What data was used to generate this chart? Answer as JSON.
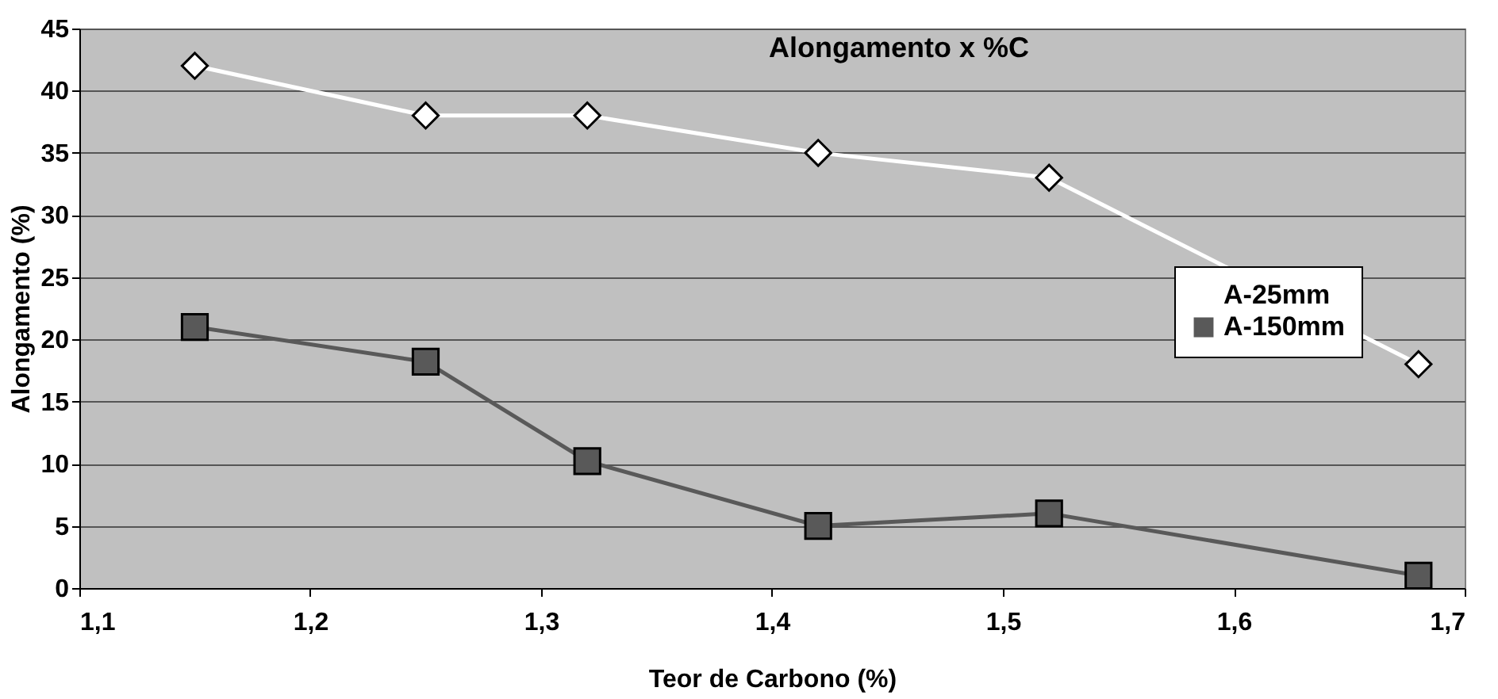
{
  "chart_data": {
    "type": "line",
    "title": "Alongamento x %C",
    "xlabel": "Teor de Carbono (%)",
    "ylabel": "Alongamento (%)",
    "x": [
      1.15,
      1.25,
      1.32,
      1.42,
      1.52,
      1.68
    ],
    "series": [
      {
        "name": "A-25mm",
        "color": "#ffffff",
        "marker": "diamond",
        "values": [
          42,
          38,
          38,
          35,
          33,
          18
        ]
      },
      {
        "name": "A-150mm",
        "color": "#595959",
        "marker": "square",
        "values": [
          21,
          18.2,
          10.2,
          5,
          6,
          1
        ]
      }
    ],
    "xlim": [
      1.1,
      1.7
    ],
    "xticks": [
      {
        "value": 1.1,
        "label": "1,1"
      },
      {
        "value": 1.2,
        "label": "1,2"
      },
      {
        "value": 1.3,
        "label": "1,3"
      },
      {
        "value": 1.4,
        "label": "1,4"
      },
      {
        "value": 1.5,
        "label": "1,5"
      },
      {
        "value": 1.6,
        "label": "1,6"
      },
      {
        "value": 1.7,
        "label": "1,7"
      }
    ],
    "ylim": [
      0,
      45
    ],
    "yticks": [
      0,
      5,
      10,
      15,
      20,
      25,
      30,
      35,
      40,
      45
    ],
    "grid": "y",
    "legend": "right"
  }
}
